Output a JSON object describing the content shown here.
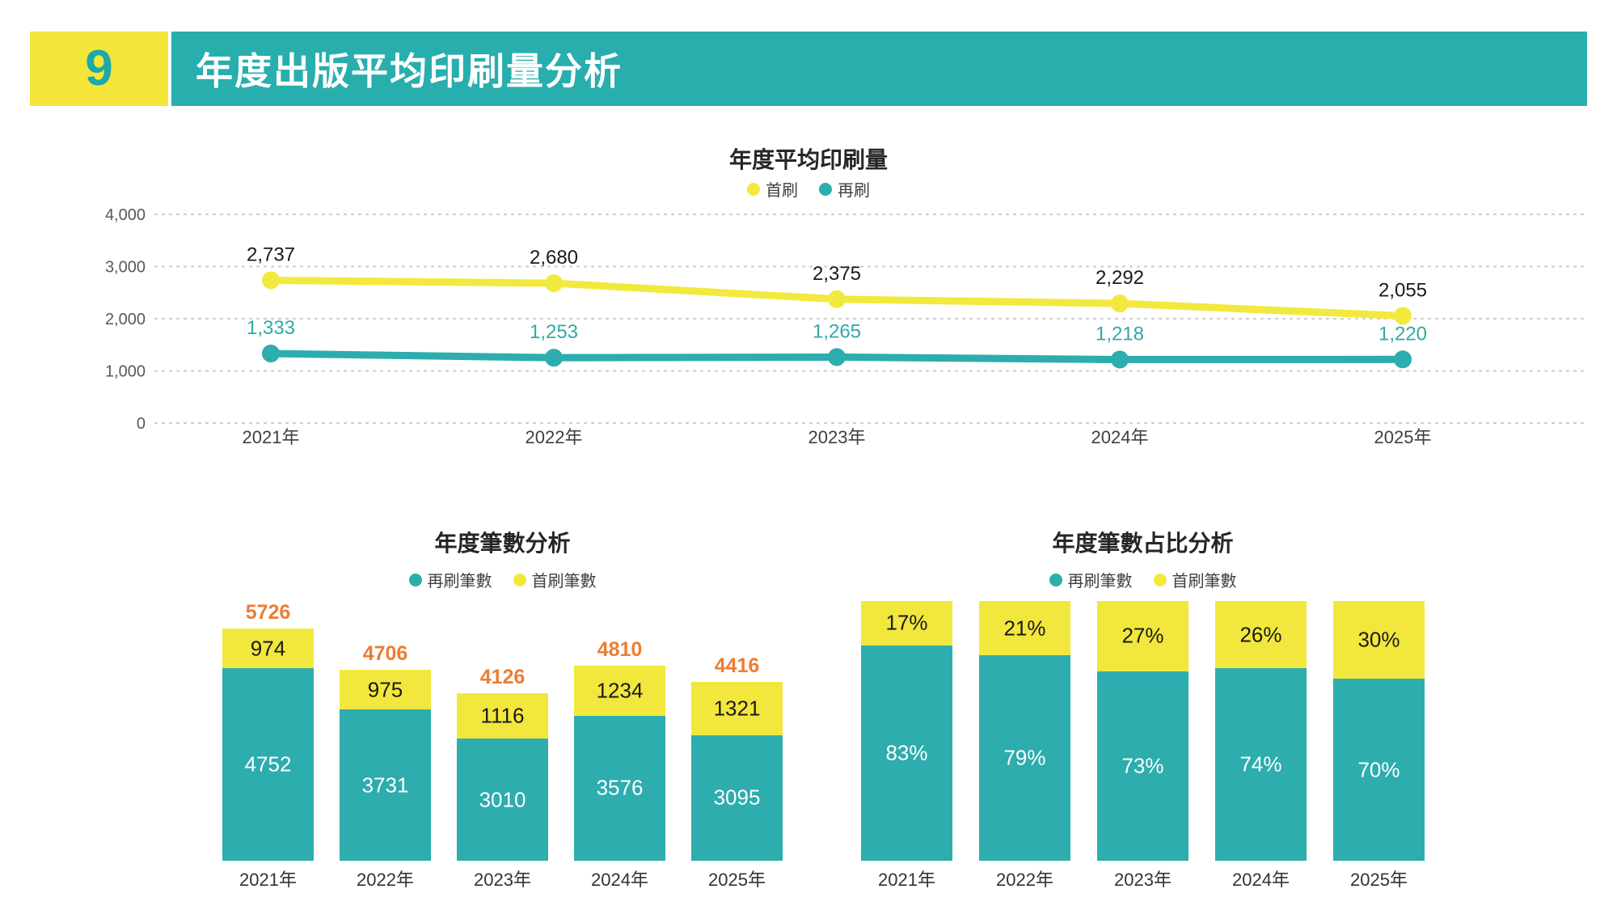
{
  "page": {
    "number": "9",
    "title": "年度出版平均印刷量分析"
  },
  "colors": {
    "teal": "#2DADAD",
    "yellow": "#F2E73C",
    "orange": "#ED7D31",
    "banner_teal": "#29AEAE",
    "header_yellow": "#F3E53A",
    "page_number_teal": "#1CA9A9",
    "axis_gray": "#595959",
    "grid_gray": "#C8C8C8",
    "black_text": "#1A1A1A",
    "teal_label": "#2FAAA5",
    "white_text": "#FFFFFF"
  },
  "chart_data": [
    {
      "id": "annual-average-print-volume",
      "type": "line",
      "title": "年度平均印刷量",
      "legend_position": "top",
      "grid": "horizontal-dotted",
      "categories": [
        "2021年",
        "2022年",
        "2023年",
        "2024年",
        "2025年"
      ],
      "ylim": [
        0,
        4000
      ],
      "y_ticks": [
        {
          "value": 4000,
          "label": "4,000"
        },
        {
          "value": 3000,
          "label": "3,000"
        },
        {
          "value": 2000,
          "label": "2,000"
        },
        {
          "value": 1000,
          "label": "1,000"
        },
        {
          "value": 0,
          "label": "0"
        }
      ],
      "series": [
        {
          "name": "首刷",
          "color": "#F2E93E",
          "values": [
            2737,
            2680,
            2375,
            2292,
            2055
          ],
          "labels": [
            "2,737",
            "2,680",
            "2,375",
            "2,292",
            "2,055"
          ],
          "label_color": "#1A1A1A"
        },
        {
          "name": "再刷",
          "color": "#2DADAD",
          "values": [
            1333,
            1253,
            1265,
            1218,
            1220
          ],
          "labels": [
            "1,333",
            "1,253",
            "1,265",
            "1,218",
            "1,220"
          ],
          "label_color": "#2FAAA5"
        }
      ]
    },
    {
      "id": "annual-count-analysis",
      "type": "bar-stacked",
      "title": "年度筆數分析",
      "legend_position": "top",
      "categories": [
        "2021年",
        "2022年",
        "2023年",
        "2024年",
        "2025年"
      ],
      "series": [
        {
          "name": "再刷筆數",
          "color": "#2DADAD",
          "values": [
            4752,
            3731,
            3010,
            3576,
            3095
          ],
          "labels": [
            "4752",
            "3731",
            "3010",
            "3576",
            "3095"
          ],
          "label_color": "#FFFFFF"
        },
        {
          "name": "首刷筆數",
          "color": "#F2E73C",
          "values": [
            974,
            975,
            1116,
            1234,
            1321
          ],
          "labels": [
            "974",
            "975",
            "1116",
            "1234",
            "1321"
          ],
          "label_color": "#1A1A1A"
        }
      ],
      "totals": {
        "values": [
          5726,
          4706,
          4126,
          4810,
          4416
        ],
        "labels": [
          "5726",
          "4706",
          "4126",
          "4810",
          "4416"
        ],
        "color": "#ED7D31"
      }
    },
    {
      "id": "annual-count-share-analysis",
      "type": "bar-stacked-100",
      "title": "年度筆數占比分析",
      "legend_position": "top",
      "categories": [
        "2021年",
        "2022年",
        "2023年",
        "2024年",
        "2025年"
      ],
      "unit": "%",
      "series": [
        {
          "name": "再刷筆數",
          "color": "#2DADAD",
          "values": [
            83,
            79,
            73,
            74,
            70
          ],
          "labels": [
            "83%",
            "79%",
            "73%",
            "74%",
            "70%"
          ],
          "label_color": "#FFFFFF"
        },
        {
          "name": "首刷筆數",
          "color": "#F2E73C",
          "values": [
            17,
            21,
            27,
            26,
            30
          ],
          "labels": [
            "17%",
            "21%",
            "27%",
            "26%",
            "30%"
          ],
          "label_color": "#1A1A1A"
        }
      ]
    }
  ]
}
